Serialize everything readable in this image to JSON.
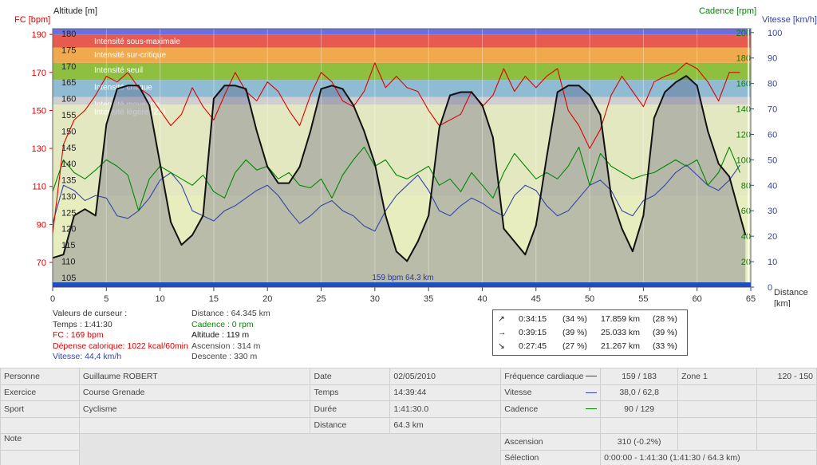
{
  "chart_data": {
    "type": "line",
    "left_axis_hr": {
      "label": "FC [bpm]",
      "ticks": [
        70,
        90,
        110,
        130,
        150,
        170,
        190
      ],
      "range": [
        57,
        193
      ],
      "color": "#dd0000"
    },
    "left_axis_alt": {
      "label": "Altitude  [m]",
      "ticks": [
        105,
        110,
        115,
        120,
        125,
        130,
        135,
        140,
        145,
        150,
        155,
        160,
        165,
        170,
        175,
        180
      ],
      "range": [
        102,
        181.5
      ],
      "color": "#222222"
    },
    "right_axis_cad": {
      "label": "Cadence [rpm]",
      "ticks": [
        20,
        40,
        60,
        80,
        100,
        120,
        140,
        160,
        180,
        200
      ],
      "range": [
        0,
        203
      ],
      "color": "#008800"
    },
    "right_axis_speed": {
      "label": "Vitesse [km/h]",
      "ticks": [
        0,
        10,
        20,
        30,
        40,
        50,
        60,
        70,
        80,
        90,
        100
      ],
      "range": [
        0,
        101.5
      ],
      "color": "#3344aa"
    },
    "x_axis": {
      "label_line1": "Distance",
      "label_line2": "[km]",
      "ticks": [
        0,
        5,
        10,
        15,
        20,
        25,
        30,
        35,
        40,
        45,
        50,
        55,
        60,
        65
      ],
      "range": [
        0,
        65
      ]
    },
    "zones": [
      {
        "label": "Intensité sous-maximale",
        "hr_from": 183,
        "hr_to": 190,
        "color": "#e65a4f"
      },
      {
        "label": "Intensité sur-critique",
        "hr_from": 175,
        "hr_to": 183,
        "color": "#f0a94e"
      },
      {
        "label": "Intensité seuil",
        "hr_from": 166,
        "hr_to": 175,
        "color": "#8fbf3e"
      },
      {
        "label": "Intensité critique",
        "hr_from": 157,
        "hr_to": 166,
        "color": "#8fbcd2"
      },
      {
        "label": "Intensité moyenne",
        "hr_from": 153,
        "hr_to": 157,
        "color": "#cfcfcf"
      },
      {
        "label": "Intensité légère (Z1)",
        "hr_from": 105,
        "hr_to": 153,
        "color": "#e4e8c0"
      },
      {
        "label": "",
        "hr_from": 59,
        "hr_to": 105,
        "color": "#e8edbe"
      }
    ],
    "series": [
      {
        "name": "FC",
        "color": "#dd0000",
        "axis": "hr",
        "x": [
          0,
          1,
          2,
          3,
          4,
          5,
          6,
          7,
          8,
          9,
          10,
          11,
          12,
          13,
          14,
          15,
          16,
          17,
          18,
          19,
          20,
          21,
          22,
          23,
          24,
          25,
          26,
          27,
          28,
          29,
          30,
          31,
          32,
          33,
          34,
          35,
          36,
          37,
          38,
          39,
          40,
          41,
          42,
          43,
          44,
          45,
          46,
          47,
          48,
          49,
          50,
          51,
          52,
          53,
          54,
          55,
          56,
          57,
          58,
          59,
          60,
          61,
          62,
          63,
          64
        ],
        "values": [
          85,
          132,
          145,
          150,
          158,
          168,
          165,
          170,
          162,
          158,
          150,
          142,
          148,
          162,
          152,
          145,
          158,
          170,
          160,
          155,
          165,
          160,
          150,
          142,
          158,
          170,
          165,
          155,
          152,
          160,
          175,
          162,
          168,
          162,
          160,
          150,
          142,
          145,
          148,
          160,
          152,
          158,
          172,
          160,
          168,
          162,
          168,
          172,
          150,
          142,
          130,
          140,
          158,
          168,
          160,
          152,
          165,
          168,
          170,
          175,
          172,
          165,
          155,
          170,
          170
        ]
      },
      {
        "name": "Altitude",
        "color": "#111111",
        "axis": "alt",
        "x": [
          0,
          1,
          2,
          3,
          4,
          5,
          6,
          7,
          8,
          9,
          10,
          11,
          12,
          13,
          14,
          15,
          16,
          17,
          18,
          19,
          20,
          21,
          22,
          23,
          24,
          25,
          26,
          27,
          28,
          29,
          30,
          31,
          32,
          33,
          34,
          35,
          36,
          37,
          38,
          39,
          40,
          41,
          42,
          43,
          44,
          45,
          46,
          47,
          48,
          49,
          50,
          51,
          52,
          53,
          54,
          55,
          56,
          57,
          58,
          59,
          60,
          61,
          62,
          63,
          64,
          64.5
        ],
        "values": [
          111,
          112,
          124,
          126,
          124,
          152,
          163,
          164,
          164,
          158,
          140,
          122,
          115,
          118,
          124,
          160,
          164,
          164,
          163,
          150,
          139,
          134,
          134,
          139,
          150,
          163,
          164,
          163,
          158,
          150,
          140,
          124,
          113,
          110,
          116,
          124,
          151,
          161,
          162,
          162,
          158,
          148,
          120,
          116,
          112,
          121,
          142,
          162,
          164,
          164,
          161,
          155,
          130,
          120,
          113,
          124,
          154,
          162,
          165,
          167,
          164,
          150,
          140,
          136,
          124,
          118
        ]
      },
      {
        "name": "Cadence",
        "color": "#008800",
        "axis": "cad",
        "x": [
          0,
          1,
          2,
          3,
          4,
          5,
          6,
          7,
          8,
          9,
          10,
          11,
          12,
          13,
          14,
          15,
          16,
          17,
          18,
          19,
          20,
          21,
          22,
          23,
          24,
          25,
          26,
          27,
          28,
          29,
          30,
          31,
          32,
          33,
          34,
          35,
          36,
          37,
          38,
          39,
          40,
          41,
          42,
          43,
          44,
          45,
          46,
          47,
          48,
          49,
          50,
          51,
          52,
          53,
          54,
          55,
          56,
          57,
          58,
          59,
          60,
          61,
          62,
          63,
          64
        ],
        "values": [
          75,
          100,
          90,
          85,
          92,
          100,
          95,
          88,
          60,
          85,
          95,
          90,
          85,
          80,
          88,
          75,
          70,
          90,
          100,
          92,
          95,
          85,
          90,
          80,
          78,
          85,
          70,
          88,
          100,
          110,
          95,
          100,
          88,
          85,
          90,
          95,
          80,
          85,
          75,
          90,
          80,
          70,
          90,
          105,
          95,
          85,
          90,
          85,
          95,
          110,
          80,
          105,
          95,
          90,
          85,
          88,
          90,
          95,
          100,
          95,
          100,
          80,
          90,
          110,
          90
        ]
      },
      {
        "name": "Vitesse",
        "color": "#3344aa",
        "axis": "speed",
        "x": [
          0,
          1,
          2,
          3,
          4,
          5,
          6,
          7,
          8,
          9,
          10,
          11,
          12,
          13,
          14,
          15,
          16,
          17,
          18,
          19,
          20,
          21,
          22,
          23,
          24,
          25,
          26,
          27,
          28,
          29,
          30,
          31,
          32,
          33,
          34,
          35,
          36,
          37,
          38,
          39,
          40,
          41,
          42,
          43,
          44,
          45,
          46,
          47,
          48,
          49,
          50,
          51,
          52,
          53,
          54,
          55,
          56,
          57,
          58,
          59,
          60,
          61,
          62,
          63,
          64
        ],
        "values": [
          25,
          40,
          38,
          34,
          36,
          35,
          28,
          27,
          30,
          35,
          42,
          45,
          40,
          30,
          28,
          26,
          30,
          32,
          35,
          38,
          40,
          36,
          30,
          25,
          28,
          32,
          34,
          30,
          28,
          24,
          22,
          30,
          36,
          40,
          44,
          38,
          30,
          28,
          32,
          35,
          33,
          30,
          28,
          36,
          40,
          38,
          32,
          28,
          30,
          35,
          40,
          42,
          38,
          30,
          28,
          34,
          36,
          40,
          45,
          48,
          44,
          40,
          38,
          42,
          48
        ]
      }
    ],
    "cursor_label": "159 bpm 64.3 km"
  },
  "cursor": {
    "title": "Valeurs de curseur :",
    "time": "Temps : 1:41:30",
    "hr": "FC : 169 bpm",
    "calories": "Dépense calorique: 1022 kcal/60min",
    "speed": "Vitesse: 44,4 km/h",
    "distance": "Distance : 64.345 km",
    "cadence": "Cadence : 0 rpm",
    "altitude": "Altitude : 119 m",
    "ascent": "Ascension : 314 m",
    "descent": "Descente : 330 m"
  },
  "stats": {
    "rows": [
      {
        "icon": "↗",
        "time": "0:34:15",
        "time_pct": "(34 %)",
        "dist": "17.859 km",
        "dist_pct": "(28 %)"
      },
      {
        "icon": "→",
        "time": "0:39:15",
        "time_pct": "(39 %)",
        "dist": "25.033 km",
        "dist_pct": "(39 %)"
      },
      {
        "icon": "↘",
        "time": "0:27:45",
        "time_pct": "(27 %)",
        "dist": "21.267 km",
        "dist_pct": "(33 %)"
      }
    ]
  },
  "table": {
    "personne_label": "Personne",
    "personne_value": "Guillaume ROBERT",
    "exercice_label": "Exercice",
    "exercice_value": "Course Grenade",
    "sport_label": "Sport",
    "sport_value": "Cyclisme",
    "note_label": "Note",
    "date_label": "Date",
    "date_value": "02/05/2010",
    "heure_label": "Temps",
    "heure_value": "14:39:44",
    "duree_label": "Durée",
    "duree_value": "1:41:30.0",
    "distance_label": "Distance",
    "distance_value": "64.3 km",
    "fc_label": "Fréquence cardiaque",
    "fc_value": "159 / 183",
    "vitesse_label": "Vitesse",
    "vitesse_value": "38,0 / 62,8",
    "cadence_label": "Cadence",
    "cadence_value": "90 / 129",
    "ascension_label": "Ascension",
    "ascension_value": "310 (-0.2%)",
    "selection_label": "Sélection",
    "selection_value": "0:00:00 - 1:41:30 (1:41:30 / 64.3 km)",
    "zone_label": "Zone 1",
    "zone_value": "120 - 150"
  }
}
